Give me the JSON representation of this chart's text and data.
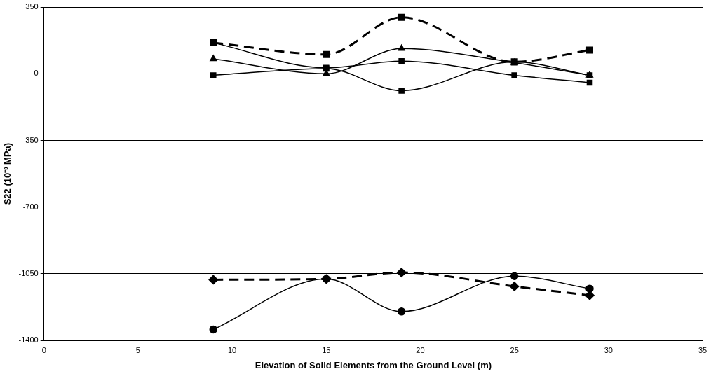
{
  "chart_data": {
    "type": "line",
    "xlabel": "Elevation of Solid Elements from the Ground Level (m)",
    "ylabel": "S22 (10⁻³ MPa)",
    "x": [
      9,
      15,
      19,
      25,
      29
    ],
    "xlim": [
      0,
      35
    ],
    "xticks": [
      0,
      5,
      10,
      15,
      20,
      25,
      30,
      35
    ],
    "ylim": [
      -1400,
      350
    ],
    "yticks": [
      -1400,
      -1050,
      -700,
      -350,
      0,
      350
    ],
    "grid": "y",
    "legend": false,
    "series": [
      {
        "color": "#000000",
        "marker": "square",
        "line_style": "dashed",
        "values": [
          163,
          101,
          296,
          62,
          124
        ]
      },
      {
        "color": "#000000",
        "marker": "triangle",
        "line_style": "solid",
        "values": [
          78,
          0,
          132,
          58,
          -8
        ]
      },
      {
        "color": "#000000",
        "marker": "square",
        "line_style": "solid",
        "values": [
          163,
          31,
          66,
          -8,
          -47
        ]
      },
      {
        "color": "#000000",
        "marker": "square",
        "line_style": "solid",
        "values": [
          -8,
          27,
          -89,
          62,
          -8
        ]
      },
      {
        "color": "#000000",
        "marker": "diamond",
        "line_style": "dashed",
        "values": [
          -1081,
          -1077,
          -1043,
          -1116,
          -1163
        ]
      },
      {
        "color": "#000000",
        "marker": "circle",
        "line_style": "solid",
        "values": [
          -1342,
          -1077,
          -1248,
          -1062,
          -1128
        ]
      }
    ]
  }
}
